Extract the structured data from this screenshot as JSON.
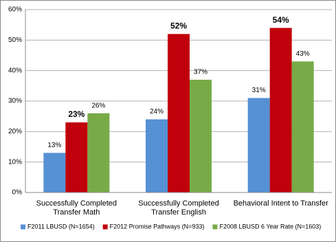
{
  "chart_data": {
    "type": "bar",
    "categories": [
      "Successfully Completed Transfer Math",
      "Successfully Completed Transfer English",
      "Behavioral Intent to Transfer"
    ],
    "series": [
      {
        "name": "F2011 LBUSD (N=1654)",
        "color": "#5591d4",
        "values": [
          13,
          24,
          31
        ],
        "value_labels": [
          "13%",
          "24%",
          "31%"
        ],
        "label_bold": false
      },
      {
        "name": "F2012 Promise Pathways (N=933)",
        "color": "#c0000b",
        "values": [
          23,
          52,
          54
        ],
        "value_labels": [
          "23%",
          "52%",
          "54%"
        ],
        "label_bold": true
      },
      {
        "name": "F2008 LBUSD 6 Year Rate (N=1603)",
        "color": "#78ab48",
        "values": [
          26,
          37,
          43
        ],
        "value_labels": [
          "26%",
          "37%",
          "43%"
        ],
        "label_bold": false
      }
    ],
    "ylim": [
      0,
      60
    ],
    "yticks": [
      {
        "value": 0,
        "label": "0%"
      },
      {
        "value": 10,
        "label": "10%"
      },
      {
        "value": 20,
        "label": "20%"
      },
      {
        "value": 30,
        "label": "30%"
      },
      {
        "value": 40,
        "label": "40%"
      },
      {
        "value": 50,
        "label": "50%"
      },
      {
        "value": 60,
        "label": "60%"
      }
    ],
    "grid": true,
    "legend": "bottom"
  }
}
